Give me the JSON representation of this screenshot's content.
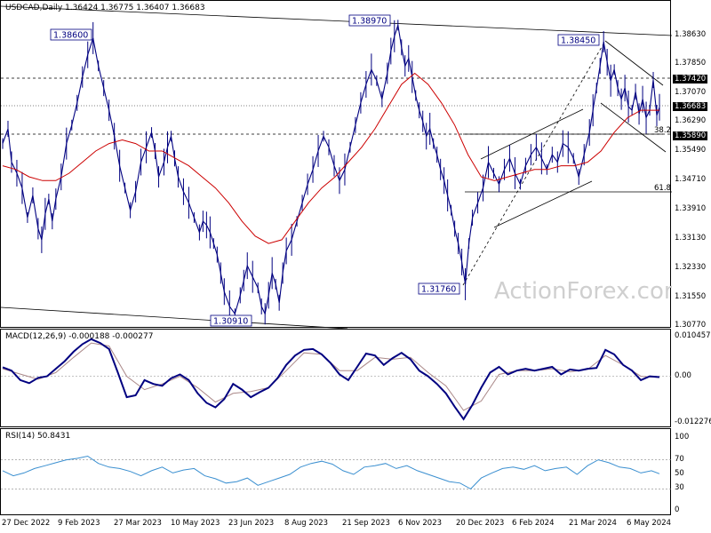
{
  "chart_header": "USDCAD,Daily  1.36424 1.36775 1.36407 1.36683",
  "watermark": "ActionForex.com",
  "chart_data": [
    {
      "type": "line",
      "panel": "price",
      "title": "USDCAD,Daily",
      "ohlc_last": {
        "open": 1.36424,
        "high": 1.36775,
        "low": 1.36407,
        "close": 1.36683
      },
      "ylim": [
        1.3077,
        1.3922
      ],
      "y_ticks": [
        "1.38630",
        "1.37850",
        "1.37070",
        "1.36290",
        "1.35490",
        "1.34710",
        "1.33910",
        "1.33130",
        "1.32330",
        "1.31550",
        "1.30770"
      ],
      "highlighted_levels": [
        "1.37420",
        "1.36683",
        "1.35890"
      ],
      "x_ticks": [
        "27 Dec 2022",
        "9 Feb 2023",
        "27 Mar 2023",
        "10 May 2023",
        "23 Jun 2023",
        "8 Aug 2023",
        "21 Sep 2023",
        "6 Nov 2023",
        "20 Dec 2023",
        "6 Feb 2024",
        "21 Mar 2024",
        "6 May 2024"
      ],
      "series": [
        {
          "name": "Price",
          "x": [
            0,
            6,
            10,
            16,
            22,
            28,
            34,
            40,
            44,
            48,
            52,
            56,
            60,
            66,
            72,
            78,
            84,
            90,
            96,
            102,
            108,
            114,
            120,
            126,
            132,
            138,
            144,
            150,
            156,
            162,
            168,
            172,
            176,
            182,
            186,
            190,
            194,
            198,
            204,
            210,
            216,
            222,
            226,
            230,
            234,
            238,
            242,
            246,
            250,
            256,
            262,
            268,
            272,
            276,
            282,
            288,
            292,
            296,
            300,
            304,
            308,
            312,
            316,
            320,
            326,
            332,
            338,
            344,
            350,
            356,
            362,
            368,
            374,
            380,
            386,
            392,
            398,
            404,
            410,
            416,
            422,
            428,
            434,
            438,
            442,
            446,
            450,
            454,
            458,
            462,
            466,
            470,
            474,
            478,
            482,
            486,
            490,
            494,
            498,
            502,
            506,
            510,
            514,
            518,
            522,
            526,
            530,
            536,
            542,
            548,
            554,
            560,
            566,
            572,
            578,
            584,
            590,
            596,
            602,
            608,
            614,
            620,
            626,
            632,
            638,
            644,
            650,
            656,
            662,
            666,
            670,
            674,
            678,
            682,
            686,
            690,
            694,
            698,
            702,
            706,
            710,
            714,
            718,
            722,
            726,
            730,
            734,
            738,
            741
          ],
          "values": [
            1.357,
            1.361,
            1.352,
            1.349,
            1.345,
            1.337,
            1.343,
            1.334,
            1.331,
            1.338,
            1.342,
            1.336,
            1.342,
            1.348,
            1.357,
            1.362,
            1.368,
            1.375,
            1.381,
            1.3855,
            1.378,
            1.372,
            1.366,
            1.359,
            1.351,
            1.345,
            1.339,
            1.344,
            1.352,
            1.356,
            1.36,
            1.355,
            1.348,
            1.352,
            1.356,
            1.359,
            1.353,
            1.348,
            1.344,
            1.341,
            1.337,
            1.333,
            1.336,
            1.335,
            1.333,
            1.33,
            1.327,
            1.322,
            1.317,
            1.313,
            1.311,
            1.316,
            1.32,
            1.324,
            1.321,
            1.318,
            1.313,
            1.311,
            1.316,
            1.322,
            1.319,
            1.314,
            1.322,
            1.328,
            1.331,
            1.336,
            1.341,
            1.346,
            1.35,
            1.355,
            1.359,
            1.356,
            1.351,
            1.347,
            1.35,
            1.356,
            1.362,
            1.368,
            1.373,
            1.377,
            1.374,
            1.369,
            1.376,
            1.382,
            1.386,
            1.389,
            1.383,
            1.378,
            1.38,
            1.375,
            1.37,
            1.366,
            1.363,
            1.359,
            1.361,
            1.357,
            1.354,
            1.35,
            1.347,
            1.343,
            1.339,
            1.334,
            1.33,
            1.325,
            1.319,
            1.33,
            1.337,
            1.341,
            1.345,
            1.352,
            1.349,
            1.346,
            1.35,
            1.353,
            1.349,
            1.346,
            1.351,
            1.354,
            1.356,
            1.353,
            1.35,
            1.354,
            1.352,
            1.357,
            1.356,
            1.353,
            1.348,
            1.354,
            1.36,
            1.366,
            1.372,
            1.378,
            1.3845,
            1.379,
            1.374,
            1.377,
            1.372,
            1.369,
            1.372,
            1.367,
            1.366,
            1.371,
            1.365,
            1.369,
            1.364,
            1.366,
            1.3742,
            1.3646,
            1.3668
          ]
        },
        {
          "name": "MA",
          "x": [
            0,
            15,
            30,
            45,
            60,
            75,
            90,
            105,
            120,
            135,
            150,
            165,
            180,
            195,
            210,
            225,
            240,
            255,
            270,
            285,
            300,
            315,
            330,
            345,
            360,
            375,
            390,
            405,
            420,
            435,
            450,
            465,
            480,
            495,
            510,
            525,
            540,
            555,
            570,
            585,
            600,
            615,
            630,
            645,
            660,
            675,
            690,
            705,
            720,
            741
          ],
          "values": [
            1.351,
            1.35,
            1.348,
            1.347,
            1.347,
            1.349,
            1.352,
            1.355,
            1.357,
            1.358,
            1.357,
            1.355,
            1.355,
            1.353,
            1.351,
            1.348,
            1.345,
            1.341,
            1.336,
            1.332,
            1.33,
            1.331,
            1.336,
            1.341,
            1.345,
            1.348,
            1.352,
            1.356,
            1.361,
            1.367,
            1.373,
            1.376,
            1.373,
            1.368,
            1.362,
            1.354,
            1.348,
            1.347,
            1.348,
            1.349,
            1.35,
            1.35,
            1.351,
            1.351,
            1.352,
            1.355,
            1.36,
            1.364,
            1.366,
            1.366
          ]
        }
      ],
      "annotations": {
        "boxed_labels": [
          "1.38600",
          "1.38970",
          "1.38450",
          "1.30910",
          "1.31760"
        ],
        "fib_labels": [
          "38.2",
          "61.8"
        ]
      },
      "colors": {
        "price": "#000080",
        "ma": "#cc0000",
        "highlight_bg": "#000000"
      }
    },
    {
      "type": "line",
      "panel": "macd",
      "title": "MACD(12,26,9) -0.000188 -0.000277",
      "ylim": [
        -0.012276,
        0.010457
      ],
      "y_ticks": [
        "0.010457",
        "0.00",
        "-0.012276"
      ],
      "series": [
        {
          "name": "MACD",
          "x": [
            0,
            10,
            20,
            30,
            40,
            50,
            60,
            70,
            80,
            90,
            100,
            110,
            120,
            130,
            140,
            150,
            160,
            170,
            180,
            190,
            200,
            210,
            220,
            230,
            240,
            250,
            260,
            270,
            280,
            290,
            300,
            310,
            320,
            330,
            340,
            350,
            360,
            370,
            380,
            390,
            400,
            410,
            420,
            430,
            440,
            450,
            460,
            470,
            480,
            490,
            500,
            510,
            520,
            530,
            540,
            550,
            560,
            570,
            580,
            590,
            600,
            610,
            620,
            630,
            640,
            650,
            660,
            670,
            680,
            690,
            700,
            710,
            720,
            730,
            741
          ],
          "values": [
            0.0024,
            0.0015,
            -0.001,
            -0.0018,
            -0.0004,
            0.0,
            0.002,
            0.004,
            0.0065,
            0.0085,
            0.0098,
            0.0088,
            0.0072,
            0.001,
            -0.0055,
            -0.005,
            -0.001,
            -0.002,
            -0.0025,
            -0.0005,
            0.0005,
            -0.001,
            -0.0045,
            -0.007,
            -0.0082,
            -0.006,
            -0.002,
            -0.0035,
            -0.0055,
            -0.0042,
            -0.003,
            -0.0005,
            0.003,
            0.0055,
            0.007,
            0.0072,
            0.0058,
            0.0035,
            0.0005,
            -0.001,
            0.0025,
            0.006,
            0.0055,
            0.003,
            0.0048,
            0.0062,
            0.0045,
            0.0015,
            0.0,
            -0.002,
            -0.0045,
            -0.008,
            -0.0113,
            -0.0075,
            -0.003,
            0.001,
            0.0025,
            0.0005,
            0.0015,
            0.002,
            0.0015,
            0.002,
            0.0025,
            0.0005,
            0.0018,
            0.0015,
            0.002,
            0.0022,
            0.007,
            0.0058,
            0.003,
            0.0015,
            -0.001,
            0.0,
            -0.0002
          ]
        },
        {
          "name": "Signal",
          "x": [
            0,
            20,
            40,
            60,
            80,
            100,
            120,
            140,
            160,
            180,
            200,
            220,
            240,
            260,
            280,
            300,
            320,
            340,
            360,
            380,
            400,
            420,
            440,
            460,
            480,
            500,
            520,
            540,
            560,
            580,
            600,
            620,
            640,
            660,
            680,
            700,
            720,
            741
          ],
          "values": [
            0.002,
            0.0006,
            -0.0008,
            0.001,
            0.005,
            0.0088,
            0.008,
            0.0,
            -0.0035,
            -0.002,
            0.0,
            -0.003,
            -0.0068,
            -0.0045,
            -0.004,
            -0.003,
            0.0015,
            0.0062,
            0.0058,
            0.0015,
            0.0015,
            0.005,
            0.0045,
            0.005,
            0.001,
            -0.0025,
            -0.009,
            -0.0065,
            0.0005,
            0.0015,
            0.0015,
            0.002,
            0.0012,
            0.0018,
            0.0055,
            0.003,
            0.0,
            -0.0003
          ]
        }
      ],
      "colors": {
        "macd": "#000080",
        "signal": "#aa8888"
      }
    },
    {
      "type": "line",
      "panel": "rsi",
      "title": "RSI(14) 50.8431",
      "ylim": [
        0,
        100
      ],
      "y_ticks": [
        "100",
        "70",
        "50",
        "30",
        "0"
      ],
      "reference_levels": [
        70,
        30
      ],
      "series": [
        {
          "name": "RSI",
          "x": [
            0,
            12,
            24,
            36,
            48,
            60,
            72,
            84,
            96,
            108,
            120,
            132,
            144,
            156,
            168,
            180,
            192,
            204,
            216,
            228,
            240,
            252,
            264,
            276,
            288,
            300,
            312,
            324,
            336,
            348,
            360,
            372,
            384,
            396,
            408,
            420,
            432,
            444,
            456,
            468,
            480,
            492,
            504,
            516,
            528,
            540,
            552,
            564,
            576,
            588,
            600,
            612,
            624,
            636,
            648,
            660,
            672,
            684,
            696,
            708,
            720,
            732,
            741
          ],
          "values": [
            55,
            48,
            52,
            58,
            62,
            66,
            70,
            72,
            75,
            65,
            60,
            58,
            54,
            48,
            55,
            60,
            52,
            56,
            58,
            48,
            44,
            38,
            40,
            45,
            35,
            40,
            45,
            50,
            60,
            65,
            68,
            64,
            55,
            50,
            60,
            62,
            65,
            58,
            62,
            55,
            50,
            45,
            40,
            38,
            30,
            45,
            52,
            58,
            60,
            57,
            62,
            55,
            58,
            60,
            50,
            62,
            70,
            66,
            60,
            58,
            52,
            55,
            50.8
          ]
        }
      ],
      "colors": {
        "rsi": "#3a8fd0"
      }
    }
  ]
}
